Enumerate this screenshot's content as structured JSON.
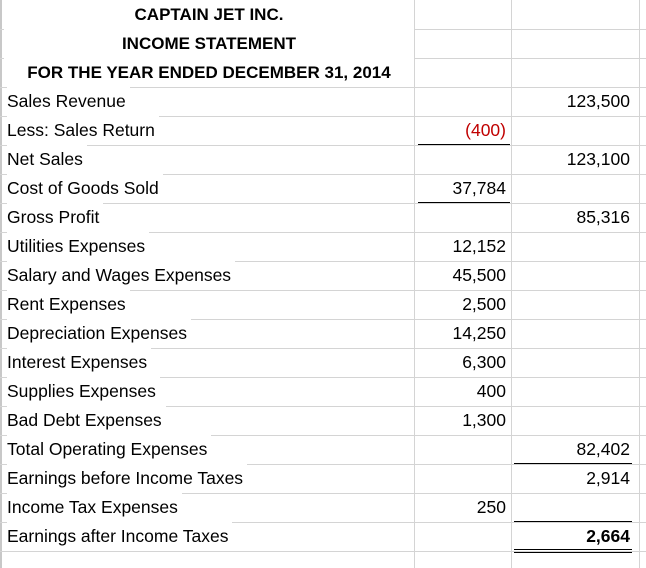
{
  "header": {
    "company": "CAPTAIN JET INC.",
    "statement": "INCOME STATEMENT",
    "period": "FOR THE YEAR ENDED DECEMBER 31, 2014"
  },
  "rows": [
    {
      "label": "Sales Revenue",
      "col1": "",
      "col2": "123,500"
    },
    {
      "label": "Less: Sales Return",
      "col1": "(400)",
      "col2": ""
    },
    {
      "label": "Net Sales",
      "col1": "",
      "col2": "123,100"
    },
    {
      "label": "Cost of Goods Sold",
      "col1": "37,784",
      "col2": ""
    },
    {
      "label": "Gross Profit",
      "col1": "",
      "col2": "85,316"
    },
    {
      "label": "Utilities Expenses",
      "col1": "12,152",
      "col2": ""
    },
    {
      "label": "Salary and Wages Expenses",
      "col1": "45,500",
      "col2": ""
    },
    {
      "label": "Rent Expenses",
      "col1": "2,500",
      "col2": ""
    },
    {
      "label": "Depreciation Expenses",
      "col1": "14,250",
      "col2": ""
    },
    {
      "label": "Interest Expenses",
      "col1": "6,300",
      "col2": ""
    },
    {
      "label": "Supplies Expenses",
      "col1": "400",
      "col2": ""
    },
    {
      "label": "Bad Debt Expenses",
      "col1": "1,300",
      "col2": ""
    },
    {
      "label": "Total Operating Expenses",
      "col1": "",
      "col2": "82,402"
    },
    {
      "label": "Earnings before Income Taxes",
      "col1": "",
      "col2": "2,914"
    },
    {
      "label": "Income Tax Expenses",
      "col1": "250",
      "col2": ""
    },
    {
      "label": "Earnings after Income Taxes",
      "col1": "",
      "col2": "2,664"
    }
  ],
  "colors": {
    "negative": "#c00000",
    "gridline": "#d4d4d4"
  }
}
